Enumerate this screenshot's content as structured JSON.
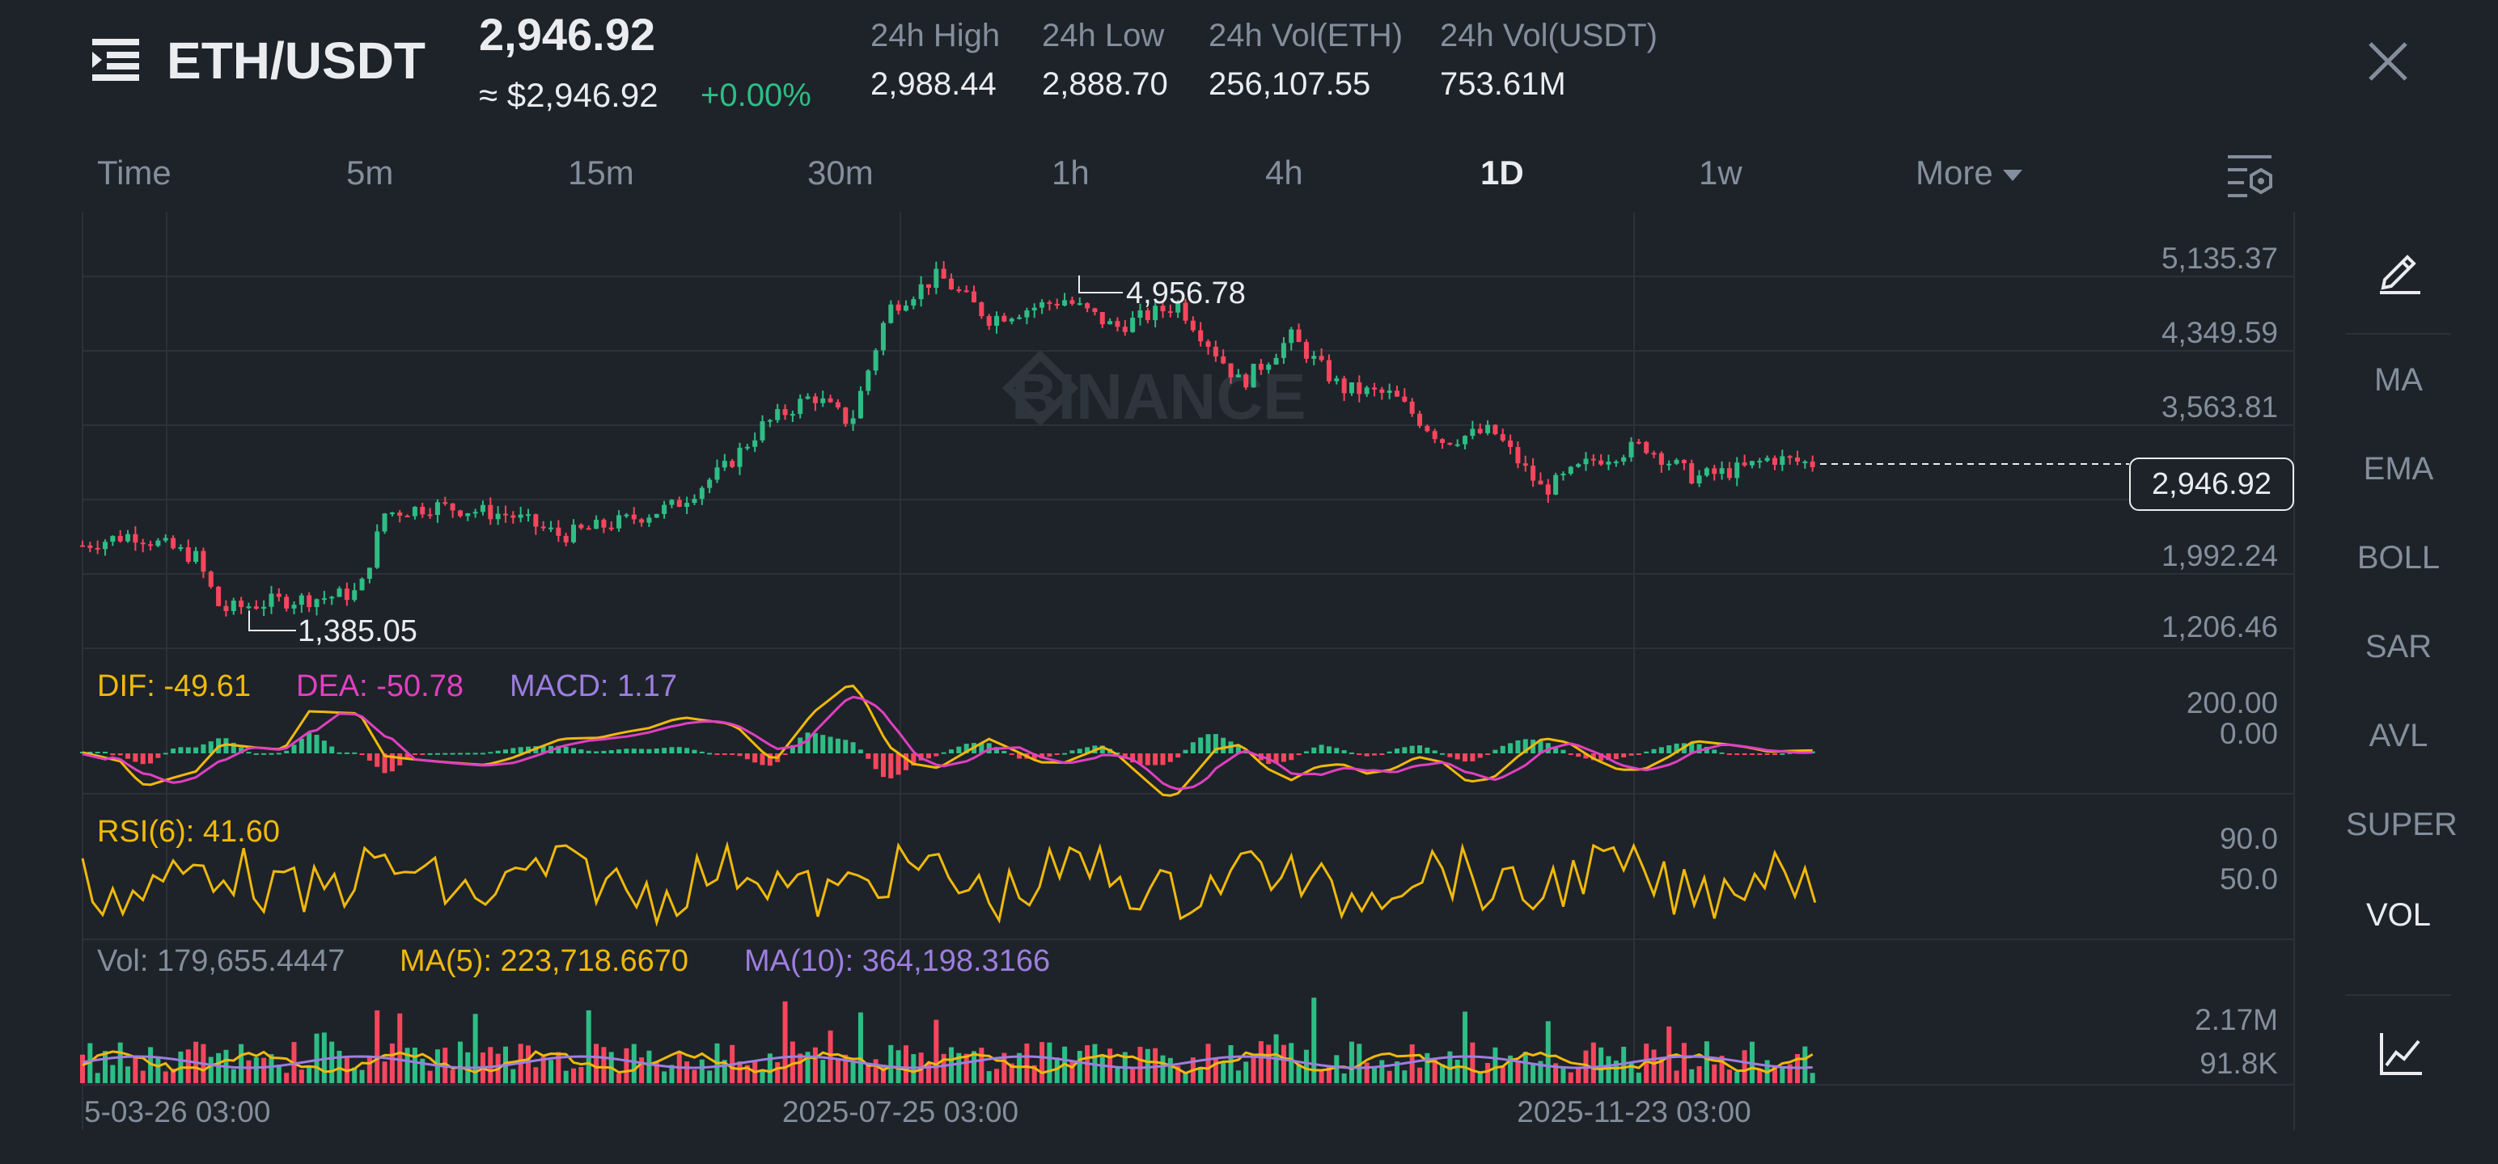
{
  "header": {
    "pair": "ETH/USDT",
    "last_price": "2,946.92",
    "usd_price": "≈ $2,946.92",
    "change": "+0.00%",
    "stats": [
      {
        "label": "24h High",
        "value": "2,988.44"
      },
      {
        "label": "24h Low",
        "value": "2,888.70"
      },
      {
        "label": "24h Vol(ETH)",
        "value": "256,107.55"
      },
      {
        "label": "24h Vol(USDT)",
        "value": "753.61M"
      }
    ]
  },
  "timeframes": {
    "items": [
      "Time",
      "5m",
      "15m",
      "30m",
      "1h",
      "4h",
      "1D",
      "1w"
    ],
    "active": "1D",
    "more_label": "More"
  },
  "price_axis": {
    "ticks": [
      "5,135.37",
      "4,349.59",
      "3,563.81",
      "1,992.24",
      "1,206.46"
    ],
    "current_price_tag": "2,946.92",
    "high_marker": "4,956.78",
    "low_marker": "1,385.05"
  },
  "watermark": "BINANCE",
  "macd": {
    "dif_label": "DIF: -49.61",
    "dea_label": "DEA: -50.78",
    "macd_label": "MACD: 1.17",
    "ticks": [
      "200.00",
      "0.00"
    ]
  },
  "rsi": {
    "label": "RSI(6): 41.60",
    "ticks": [
      "90.0",
      "50.0"
    ]
  },
  "volume": {
    "vol_label": "Vol: 179,655.4447",
    "ma5_label": "MA(5): 223,718.6670",
    "ma10_label": "MA(10): 364,198.3166",
    "ticks": [
      "2.17M",
      "91.8K"
    ]
  },
  "time_axis": [
    "5-03-26 03:00",
    "2025-07-25 03:00",
    "2025-11-23 03:00"
  ],
  "side_tools": {
    "items": [
      "MA",
      "EMA",
      "BOLL",
      "SAR",
      "AVL",
      "SUPER",
      "VOL"
    ],
    "active": "VOL"
  },
  "colors": {
    "up": "#2ebd85",
    "down": "#f6465d",
    "dif": "#f0b90b",
    "dea": "#e040c0",
    "macd_label": "#9d7ee0",
    "rsi": "#f0b90b",
    "ma5": "#f0b90b",
    "ma10": "#9d7ee0",
    "background": "#1e2329",
    "grid": "#2b3139"
  },
  "icons": {
    "menu": "menu-icon",
    "close": "close-icon",
    "chart_settings": "chart-settings-icon",
    "draw": "pencil-icon",
    "chart_type": "line-chart-icon"
  }
}
